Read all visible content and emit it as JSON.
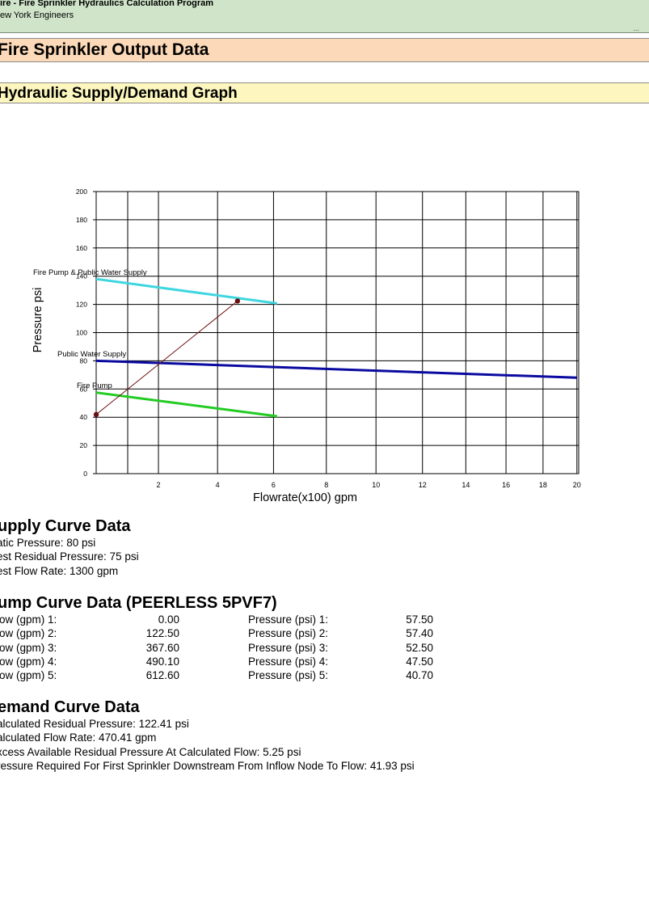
{
  "app": {
    "title": "ire - Fire Sprinkler Hydraulics Calculation Program",
    "company": "ew York Engineers",
    "corner_mark": "..."
  },
  "bands": {
    "output": "Fire Sprinkler Output Data",
    "graph": "Hydraulic Supply/Demand Graph"
  },
  "chart_data": {
    "type": "line",
    "xlabel": "Flowrate(x100)  gpm",
    "ylabel": "Pressure  psi",
    "xlim": [
      0,
      20
    ],
    "ylim": [
      0,
      200
    ],
    "grid": true,
    "x_ticks": [
      2,
      4,
      6,
      8,
      10,
      12,
      14,
      16,
      18,
      20
    ],
    "y_ticks": [
      0,
      20,
      40,
      60,
      80,
      100,
      120,
      140,
      160,
      180,
      200
    ],
    "series": [
      {
        "name": "Fire Pump & Public Water Supply",
        "color": "#3fd6e0",
        "x": [
          0,
          6.13
        ],
        "y": [
          138,
          120.7
        ]
      },
      {
        "name": "Public Water Supply",
        "color": "#0a0aa0",
        "x": [
          0,
          20
        ],
        "y": [
          80,
          68
        ]
      },
      {
        "name": "Fire Pump",
        "color": "#22cc22",
        "x": [
          0,
          6.13
        ],
        "y": [
          57.5,
          40.7
        ]
      },
      {
        "name": "",
        "color": "#6b1010",
        "x": [
          0,
          4.7
        ],
        "y": [
          41.93,
          122.41
        ],
        "markers": true
      }
    ]
  },
  "supply": {
    "heading": "upply Curve Data",
    "lines": [
      "atic Pressure: 80 psi",
      "est Residual Pressure: 75 psi",
      "est Flow Rate: 1300 gpm"
    ]
  },
  "pump": {
    "heading": "ump Curve Data (PEERLESS 5PVF7)",
    "rows": [
      {
        "flow_label": "low (gpm) 1:",
        "flow": "0.00",
        "pressure_label": "Pressure (psi) 1:",
        "pressure": "57.50"
      },
      {
        "flow_label": "low (gpm) 2:",
        "flow": "122.50",
        "pressure_label": "Pressure (psi) 2:",
        "pressure": "57.40"
      },
      {
        "flow_label": "low (gpm) 3:",
        "flow": "367.60",
        "pressure_label": "Pressure (psi) 3:",
        "pressure": "52.50"
      },
      {
        "flow_label": "low (gpm) 4:",
        "flow": "490.10",
        "pressure_label": "Pressure (psi) 4:",
        "pressure": "47.50"
      },
      {
        "flow_label": "low (gpm) 5:",
        "flow": "612.60",
        "pressure_label": "Pressure (psi) 5:",
        "pressure": "40.70"
      }
    ]
  },
  "demand": {
    "heading": "emand Curve Data",
    "lines": [
      "alculated Residual Pressure: 122.41 psi",
      "alculated Flow Rate: 470.41 gpm",
      "xcess Available Residual Pressure At Calculated Flow: 5.25 psi",
      "ressure Required For First Sprinkler Downstream From Inflow Node To Flow: 41.93 psi"
    ]
  }
}
